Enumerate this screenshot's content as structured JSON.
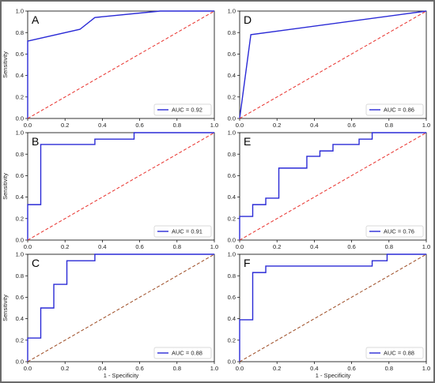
{
  "chart_data": [
    {
      "panel": "A",
      "type": "line",
      "xlabel": "",
      "ylabel": "Sensitivity",
      "xlim": [
        0,
        1
      ],
      "ylim": [
        0,
        1
      ],
      "xticks": [
        "0.0",
        "0.2",
        "0.4",
        "0.6",
        "0.8",
        "1.0"
      ],
      "yticks": [
        "0.0",
        "0.2",
        "0.4",
        "0.6",
        "0.8",
        "1.0"
      ],
      "legend": "AUC = 0.92",
      "legend_position": "bottom-right",
      "series": [
        {
          "name": "AUC = 0.92",
          "color": "#2a2ad6",
          "style": "solid",
          "x": [
            0,
            0,
            0.28,
            0.36,
            0.71,
            1.0
          ],
          "y": [
            0,
            0.72,
            0.83,
            0.94,
            1.0,
            1.0
          ]
        },
        {
          "color": "#e8302b",
          "style": "dashed",
          "x": [
            0,
            1
          ],
          "y": [
            0,
            1
          ]
        }
      ]
    },
    {
      "panel": "D",
      "type": "line",
      "xlabel": "",
      "ylabel": "",
      "xlim": [
        0,
        1
      ],
      "ylim": [
        0,
        1
      ],
      "xticks": [
        "0.0",
        "0.2",
        "0.4",
        "0.6",
        "0.8",
        "1.0"
      ],
      "yticks": [
        "0.0",
        "0.2",
        "0.4",
        "0.6",
        "0.8",
        "1.0"
      ],
      "legend": "AUC = 0.86",
      "legend_position": "bottom-right",
      "series": [
        {
          "name": "AUC = 0.86",
          "color": "#2a2ad6",
          "style": "solid",
          "x": [
            0,
            0.06,
            1.0
          ],
          "y": [
            0,
            0.78,
            1.0
          ]
        },
        {
          "color": "#e8302b",
          "style": "dashed",
          "x": [
            0,
            1
          ],
          "y": [
            0,
            1
          ]
        }
      ]
    },
    {
      "panel": "B",
      "type": "line",
      "xlabel": "",
      "ylabel": "Sensitivity",
      "xlim": [
        0,
        1
      ],
      "ylim": [
        0,
        1
      ],
      "xticks": [
        "0.0",
        "0.2",
        "0.4",
        "0.6",
        "0.8",
        "1.0"
      ],
      "yticks": [
        "0.0",
        "0.2",
        "0.4",
        "0.6",
        "0.8",
        "1.0"
      ],
      "legend": "AUC = 0.91",
      "legend_position": "bottom-right",
      "series": [
        {
          "name": "AUC = 0.91",
          "color": "#2a2ad6",
          "style": "solid",
          "x": [
            0,
            0,
            0.07,
            0.07,
            0.36,
            0.36,
            0.57,
            0.57,
            1.0
          ],
          "y": [
            0,
            0.33,
            0.33,
            0.89,
            0.89,
            0.94,
            0.94,
            1.0,
            1.0
          ]
        },
        {
          "color": "#e8302b",
          "style": "dashed",
          "x": [
            0,
            1
          ],
          "y": [
            0,
            1
          ]
        }
      ]
    },
    {
      "panel": "E",
      "type": "line",
      "xlabel": "",
      "ylabel": "",
      "xlim": [
        0,
        1
      ],
      "ylim": [
        0,
        1
      ],
      "xticks": [
        "0.0",
        "0.2",
        "0.4",
        "0.6",
        "0.8",
        "1.0"
      ],
      "yticks": [
        "0.0",
        "0.2",
        "0.4",
        "0.6",
        "0.8",
        "1.0"
      ],
      "legend": "AUC = 0.76",
      "legend_position": "bottom-right",
      "series": [
        {
          "name": "AUC = 0.76",
          "color": "#2a2ad6",
          "style": "solid",
          "x": [
            0,
            0,
            0.07,
            0.07,
            0.14,
            0.14,
            0.21,
            0.21,
            0.36,
            0.36,
            0.43,
            0.43,
            0.5,
            0.5,
            0.64,
            0.64,
            0.71,
            0.71,
            1.0
          ],
          "y": [
            0,
            0.22,
            0.22,
            0.33,
            0.33,
            0.39,
            0.39,
            0.67,
            0.67,
            0.78,
            0.78,
            0.83,
            0.83,
            0.89,
            0.89,
            0.94,
            0.94,
            1.0,
            1.0
          ]
        },
        {
          "color": "#e8302b",
          "style": "dashed",
          "x": [
            0,
            1
          ],
          "y": [
            0,
            1
          ]
        }
      ]
    },
    {
      "panel": "C",
      "type": "line",
      "xlabel": "1 - Specificity",
      "ylabel": "Sensitivity",
      "xlim": [
        0,
        1
      ],
      "ylim": [
        0,
        1
      ],
      "xticks": [
        "0.0",
        "0.2",
        "0.4",
        "0.6",
        "0.8",
        "1.0"
      ],
      "yticks": [
        "0.0",
        "0.2",
        "0.4",
        "0.6",
        "0.8",
        "1.0"
      ],
      "legend": "AUC = 0.88",
      "legend_position": "bottom-right",
      "series": [
        {
          "name": "AUC = 0.88",
          "color": "#2a2ad6",
          "style": "solid",
          "x": [
            0,
            0,
            0.07,
            0.07,
            0.14,
            0.14,
            0.21,
            0.21,
            0.36,
            0.36,
            1.0
          ],
          "y": [
            0,
            0.22,
            0.22,
            0.5,
            0.5,
            0.72,
            0.72,
            0.94,
            0.94,
            1.0,
            1.0
          ]
        },
        {
          "color": "#9c4a22",
          "style": "dashed",
          "x": [
            0,
            1
          ],
          "y": [
            0,
            1
          ]
        }
      ]
    },
    {
      "panel": "F",
      "type": "line",
      "xlabel": "1 - Specificity",
      "ylabel": "",
      "xlim": [
        0,
        1
      ],
      "ylim": [
        0,
        1
      ],
      "xticks": [
        "0.0",
        "0.2",
        "0.4",
        "0.6",
        "0.8",
        "1.0"
      ],
      "yticks": [
        "0.0",
        "0.2",
        "0.4",
        "0.6",
        "0.8",
        "1.0"
      ],
      "legend": "AUC = 0.88",
      "legend_position": "bottom-right",
      "series": [
        {
          "name": "AUC = 0.88",
          "color": "#2a2ad6",
          "style": "solid",
          "x": [
            0,
            0,
            0.07,
            0.07,
            0.14,
            0.14,
            0.71,
            0.71,
            0.79,
            0.79,
            1.0
          ],
          "y": [
            0,
            0.39,
            0.39,
            0.83,
            0.83,
            0.89,
            0.89,
            0.94,
            0.94,
            1.0,
            1.0
          ]
        },
        {
          "color": "#9c4a22",
          "style": "dashed",
          "x": [
            0,
            1
          ],
          "y": [
            0,
            1
          ]
        }
      ]
    }
  ]
}
